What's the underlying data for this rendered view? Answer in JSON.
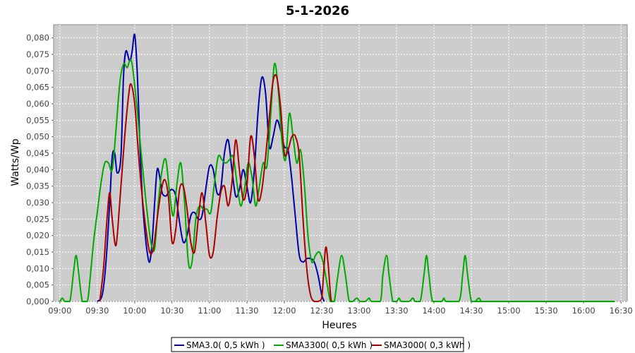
{
  "chart_data": {
    "type": "line",
    "title": "5-1-2026",
    "xlabel": "Heures",
    "ylabel": "Watts/Wp",
    "xlim": [
      "08:55",
      "16:35"
    ],
    "ylim": [
      0,
      0.084
    ],
    "x_ticks": [
      "09:00",
      "09:30",
      "10:00",
      "10:30",
      "11:00",
      "11:30",
      "12:00",
      "12:30",
      "13:00",
      "13:30",
      "14:00",
      "14:30",
      "15:00",
      "15:30",
      "16:00",
      "16:30"
    ],
    "y_ticks": [
      "0,000",
      "0,005",
      "0,010",
      "0,015",
      "0,020",
      "0,025",
      "0,030",
      "0,035",
      "0,040",
      "0,045",
      "0,050",
      "0,055",
      "0,060",
      "0,065",
      "0,070",
      "0,075",
      "0,080"
    ],
    "grid": true,
    "background": "#cccccc",
    "legend_position": "bottom",
    "series": [
      {
        "name": "SMA3.0( 0,5 kWh )",
        "color": "#0000aa",
        "points": [
          [
            "09:30",
            0
          ],
          [
            "09:34",
            0.002
          ],
          [
            "09:37",
            0.012
          ],
          [
            "09:40",
            0.03
          ],
          [
            "09:42",
            0.044
          ],
          [
            "09:44",
            0.045
          ],
          [
            "09:46",
            0.039
          ],
          [
            "09:49",
            0.044
          ],
          [
            "09:51",
            0.068
          ],
          [
            "09:53",
            0.076
          ],
          [
            "09:56",
            0.073
          ],
          [
            "09:58",
            0.076
          ],
          [
            "10:00",
            0.081
          ],
          [
            "10:02",
            0.07
          ],
          [
            "10:04",
            0.05
          ],
          [
            "10:06",
            0.032
          ],
          [
            "10:08",
            0.022
          ],
          [
            "10:10",
            0.015
          ],
          [
            "10:12",
            0.012
          ],
          [
            "10:14",
            0.018
          ],
          [
            "10:16",
            0.03
          ],
          [
            "10:18",
            0.04
          ],
          [
            "10:20",
            0.038
          ],
          [
            "10:22",
            0.033
          ],
          [
            "10:25",
            0.032
          ],
          [
            "10:27",
            0.033
          ],
          [
            "10:30",
            0.034
          ],
          [
            "10:33",
            0.032
          ],
          [
            "10:36",
            0.024
          ],
          [
            "10:39",
            0.018
          ],
          [
            "10:42",
            0.02
          ],
          [
            "10:45",
            0.026
          ],
          [
            "10:48",
            0.027
          ],
          [
            "10:51",
            0.025
          ],
          [
            "10:54",
            0.026
          ],
          [
            "10:57",
            0.034
          ],
          [
            "11:00",
            0.041
          ],
          [
            "11:03",
            0.04
          ],
          [
            "11:06",
            0.033
          ],
          [
            "11:09",
            0.034
          ],
          [
            "11:12",
            0.045
          ],
          [
            "11:15",
            0.049
          ],
          [
            "11:18",
            0.04
          ],
          [
            "11:21",
            0.032
          ],
          [
            "11:24",
            0.034
          ],
          [
            "11:27",
            0.04
          ],
          [
            "11:30",
            0.035
          ],
          [
            "11:33",
            0.03
          ],
          [
            "11:36",
            0.04
          ],
          [
            "11:39",
            0.058
          ],
          [
            "11:42",
            0.068
          ],
          [
            "11:45",
            0.063
          ],
          [
            "11:48",
            0.047
          ],
          [
            "11:51",
            0.05
          ],
          [
            "11:54",
            0.055
          ],
          [
            "11:57",
            0.052
          ],
          [
            "12:00",
            0.047
          ],
          [
            "12:03",
            0.046
          ],
          [
            "12:06",
            0.037
          ],
          [
            "12:09",
            0.025
          ],
          [
            "12:12",
            0.014
          ],
          [
            "12:15",
            0.012
          ],
          [
            "12:18",
            0.013
          ],
          [
            "12:21",
            0.013
          ],
          [
            "12:24",
            0.012
          ],
          [
            "12:27",
            0.008
          ],
          [
            "12:30",
            0.002
          ],
          [
            "12:32",
            0
          ]
        ]
      },
      {
        "name": "SMA3300( 0,5 kWh )",
        "color": "#00aa00",
        "points": [
          [
            "09:00",
            0
          ],
          [
            "09:02",
            0.001
          ],
          [
            "09:04",
            0
          ],
          [
            "09:08",
            0
          ],
          [
            "09:11",
            0.009
          ],
          [
            "09:13",
            0.014
          ],
          [
            "09:15",
            0.009
          ],
          [
            "09:18",
            0
          ],
          [
            "09:22",
            0
          ],
          [
            "09:24",
            0.006
          ],
          [
            "09:27",
            0.018
          ],
          [
            "09:30",
            0.027
          ],
          [
            "09:33",
            0.036
          ],
          [
            "09:36",
            0.042
          ],
          [
            "09:39",
            0.042
          ],
          [
            "09:42",
            0.04
          ],
          [
            "09:45",
            0.052
          ],
          [
            "09:48",
            0.066
          ],
          [
            "09:51",
            0.072
          ],
          [
            "09:54",
            0.071
          ],
          [
            "09:56",
            0.073
          ],
          [
            "09:58",
            0.072
          ],
          [
            "10:01",
            0.062
          ],
          [
            "10:04",
            0.05
          ],
          [
            "10:07",
            0.038
          ],
          [
            "10:10",
            0.027
          ],
          [
            "10:13",
            0.018
          ],
          [
            "10:16",
            0.016
          ],
          [
            "10:19",
            0.03
          ],
          [
            "10:22",
            0.04
          ],
          [
            "10:25",
            0.043
          ],
          [
            "10:28",
            0.033
          ],
          [
            "10:31",
            0.026
          ],
          [
            "10:34",
            0.036
          ],
          [
            "10:37",
            0.042
          ],
          [
            "10:40",
            0.03
          ],
          [
            "10:43",
            0.012
          ],
          [
            "10:46",
            0.012
          ],
          [
            "10:49",
            0.025
          ],
          [
            "10:52",
            0.029
          ],
          [
            "10:55",
            0.028
          ],
          [
            "10:58",
            0.028
          ],
          [
            "11:01",
            0.027
          ],
          [
            "11:04",
            0.036
          ],
          [
            "11:07",
            0.044
          ],
          [
            "11:10",
            0.043
          ],
          [
            "11:13",
            0.042
          ],
          [
            "11:16",
            0.043
          ],
          [
            "11:19",
            0.044
          ],
          [
            "11:22",
            0.036
          ],
          [
            "11:25",
            0.029
          ],
          [
            "11:28",
            0.034
          ],
          [
            "11:31",
            0.042
          ],
          [
            "11:34",
            0.038
          ],
          [
            "11:37",
            0.029
          ],
          [
            "11:40",
            0.035
          ],
          [
            "11:43",
            0.042
          ],
          [
            "11:46",
            0.041
          ],
          [
            "11:49",
            0.056
          ],
          [
            "11:52",
            0.072
          ],
          [
            "11:55",
            0.065
          ],
          [
            "11:58",
            0.049
          ],
          [
            "12:01",
            0.043
          ],
          [
            "12:04",
            0.057
          ],
          [
            "12:07",
            0.05
          ],
          [
            "12:10",
            0.042
          ],
          [
            "12:13",
            0.046
          ],
          [
            "12:16",
            0.036
          ],
          [
            "12:19",
            0.02
          ],
          [
            "12:22",
            0.012
          ],
          [
            "12:25",
            0.014
          ],
          [
            "12:28",
            0.015
          ],
          [
            "12:31",
            0.012
          ],
          [
            "12:34",
            0.006
          ],
          [
            "12:37",
            0
          ],
          [
            "12:40",
            0
          ],
          [
            "12:43",
            0.008
          ],
          [
            "12:46",
            0.014
          ],
          [
            "12:49",
            0.008
          ],
          [
            "12:52",
            0
          ],
          [
            "12:55",
            0
          ],
          [
            "12:58",
            0.001
          ],
          [
            "13:01",
            0
          ],
          [
            "13:05",
            0
          ],
          [
            "13:08",
            0.001
          ],
          [
            "13:10",
            0
          ],
          [
            "13:17",
            0
          ],
          [
            "13:19",
            0.008
          ],
          [
            "13:22",
            0.014
          ],
          [
            "13:24",
            0.008
          ],
          [
            "13:27",
            0
          ],
          [
            "13:30",
            0
          ],
          [
            "13:32",
            0.001
          ],
          [
            "13:34",
            0
          ],
          [
            "13:40",
            0
          ],
          [
            "13:43",
            0.001
          ],
          [
            "13:45",
            0
          ],
          [
            "13:49",
            0
          ],
          [
            "13:52",
            0.008
          ],
          [
            "13:54",
            0.014
          ],
          [
            "13:56",
            0.008
          ],
          [
            "13:59",
            0
          ],
          [
            "14:06",
            0
          ],
          [
            "14:08",
            0.001
          ],
          [
            "14:10",
            0
          ],
          [
            "14:20",
            0
          ],
          [
            "14:23",
            0.008
          ],
          [
            "14:25",
            0.014
          ],
          [
            "14:27",
            0.008
          ],
          [
            "14:30",
            0
          ],
          [
            "14:33",
            0
          ],
          [
            "14:36",
            0.001
          ],
          [
            "14:38",
            0
          ],
          [
            "14:40",
            0
          ],
          [
            "16:25",
            0
          ]
        ]
      },
      {
        "name": "SMA3000( 0,3 kWh )",
        "color": "#aa0000",
        "points": [
          [
            "09:32",
            0
          ],
          [
            "09:35",
            0.01
          ],
          [
            "09:38",
            0.026
          ],
          [
            "09:40",
            0.033
          ],
          [
            "09:42",
            0.025
          ],
          [
            "09:45",
            0.017
          ],
          [
            "09:48",
            0.03
          ],
          [
            "09:52",
            0.05
          ],
          [
            "09:55",
            0.062
          ],
          [
            "09:57",
            0.066
          ],
          [
            "10:00",
            0.06
          ],
          [
            "10:03",
            0.045
          ],
          [
            "10:06",
            0.032
          ],
          [
            "10:09",
            0.022
          ],
          [
            "10:12",
            0.015
          ],
          [
            "10:15",
            0.016
          ],
          [
            "10:18",
            0.025
          ],
          [
            "10:21",
            0.033
          ],
          [
            "10:24",
            0.037
          ],
          [
            "10:27",
            0.032
          ],
          [
            "10:30",
            0.018
          ],
          [
            "10:33",
            0.022
          ],
          [
            "10:36",
            0.034
          ],
          [
            "10:39",
            0.035
          ],
          [
            "10:42",
            0.028
          ],
          [
            "10:45",
            0.018
          ],
          [
            "10:48",
            0.015
          ],
          [
            "10:51",
            0.025
          ],
          [
            "10:54",
            0.033
          ],
          [
            "10:57",
            0.024
          ],
          [
            "11:00",
            0.014
          ],
          [
            "11:03",
            0.015
          ],
          [
            "11:06",
            0.025
          ],
          [
            "11:09",
            0.033
          ],
          [
            "11:12",
            0.035
          ],
          [
            "11:15",
            0.029
          ],
          [
            "11:18",
            0.036
          ],
          [
            "11:21",
            0.049
          ],
          [
            "11:24",
            0.04
          ],
          [
            "11:27",
            0.031
          ],
          [
            "11:30",
            0.035
          ],
          [
            "11:33",
            0.05
          ],
          [
            "11:36",
            0.044
          ],
          [
            "11:39",
            0.031
          ],
          [
            "11:42",
            0.034
          ],
          [
            "11:45",
            0.044
          ],
          [
            "11:48",
            0.056
          ],
          [
            "11:51",
            0.067
          ],
          [
            "11:54",
            0.068
          ],
          [
            "11:57",
            0.059
          ],
          [
            "12:00",
            0.045
          ],
          [
            "12:03",
            0.046
          ],
          [
            "12:06",
            0.05
          ],
          [
            "12:09",
            0.05
          ],
          [
            "12:12",
            0.044
          ],
          [
            "12:15",
            0.025
          ],
          [
            "12:18",
            0.01
          ],
          [
            "12:21",
            0.002
          ],
          [
            "12:24",
            0
          ],
          [
            "12:27",
            0
          ],
          [
            "12:30",
            0.001
          ],
          [
            "12:33",
            0.016
          ],
          [
            "12:35",
            0.012
          ],
          [
            "12:37",
            0.002
          ],
          [
            "12:38",
            0
          ]
        ]
      }
    ]
  }
}
